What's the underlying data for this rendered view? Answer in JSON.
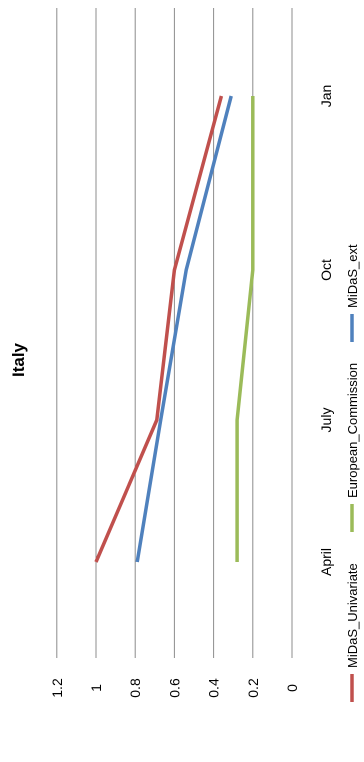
{
  "chart_data": {
    "type": "line",
    "title": "Italy",
    "categories": [
      "April",
      "July",
      "Oct",
      "Jan"
    ],
    "series": [
      {
        "name": "MiDaS_Univariate",
        "color": "#c0504d",
        "values": [
          1.0,
          0.69,
          0.6,
          0.36
        ]
      },
      {
        "name": "European_Commission",
        "color": "#9bbb59",
        "values": [
          0.28,
          0.28,
          0.2,
          0.2
        ]
      },
      {
        "name": "MiDaS_ext",
        "color": "#4f81bd",
        "values": [
          0.79,
          0.67,
          0.54,
          0.31
        ]
      }
    ],
    "ylim": [
      0,
      1.2
    ],
    "yticks": [
      0,
      0.2,
      0.4,
      0.6,
      0.8,
      1,
      1.2
    ],
    "ytick_labels": [
      "0",
      "0.2",
      "0.4",
      "0.6",
      "0.8",
      "1",
      "1.2"
    ],
    "grid": true,
    "legend": "bottom",
    "orientation": "rotated-90-clockwise"
  }
}
